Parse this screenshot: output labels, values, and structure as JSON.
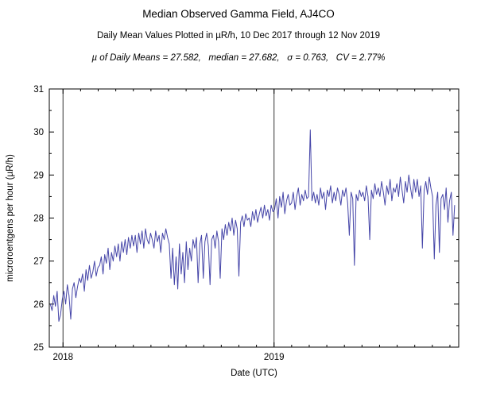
{
  "header": {
    "title": "Median Observed Gamma Field, AJ4CO",
    "subtitle": "Daily Mean Values Plotted in µR/h, 10 Dec 2017 through 12 Nov 2019",
    "stats": "µ of Daily Means = 27.582,   median = 27.682,   σ = 0.763,   CV = 2.77%"
  },
  "axes": {
    "xlabel": "Date (UTC)",
    "ylabel": "microroentgens per hour (µR/h)",
    "yticks": [
      25,
      26,
      27,
      28,
      29,
      30,
      31
    ],
    "xticks": [
      {
        "label": "2018",
        "value": 2018
      },
      {
        "label": "2019",
        "value": 2019
      }
    ]
  },
  "chart_data": {
    "type": "line",
    "title": "Median Observed Gamma Field, AJ4CO",
    "xlabel": "Date (UTC)",
    "ylabel": "microroentgens per hour (µR/h)",
    "xlim": [
      2017.935,
      2019.875
    ],
    "ylim": [
      25,
      31
    ],
    "x_start": 2017.94,
    "x_step": 0.00805,
    "x_minor_step": 0.0833333,
    "y_minor_step": 0.5,
    "line_color": "#4545a8",
    "grid_color": "#333333",
    "year_gridlines": [
      2018,
      2019
    ],
    "legend": "none",
    "values": [
      26.0,
      25.85,
      26.2,
      25.95,
      26.3,
      25.6,
      25.75,
      26.1,
      26.3,
      26.0,
      26.45,
      26.2,
      25.65,
      26.35,
      26.5,
      26.15,
      26.4,
      26.6,
      26.5,
      26.7,
      26.3,
      26.8,
      26.55,
      26.9,
      26.6,
      26.75,
      27.0,
      26.65,
      26.85,
      26.9,
      27.1,
      26.7,
      27.15,
      26.95,
      27.3,
      26.8,
      27.2,
      27.0,
      27.35,
      27.1,
      27.4,
      27.0,
      27.45,
      27.2,
      27.5,
      27.15,
      27.55,
      27.3,
      27.6,
      27.35,
      27.6,
      27.2,
      27.65,
      27.4,
      27.7,
      27.3,
      27.75,
      27.5,
      27.4,
      27.65,
      27.5,
      27.3,
      27.7,
      27.45,
      27.6,
      27.2,
      27.65,
      27.5,
      27.75,
      27.55,
      27.4,
      26.6,
      27.3,
      26.45,
      27.1,
      26.35,
      27.4,
      26.7,
      27.2,
      26.5,
      27.45,
      26.8,
      27.3,
      27.0,
      27.5,
      27.3,
      27.55,
      26.5,
      27.4,
      27.6,
      26.6,
      27.45,
      27.65,
      27.35,
      26.45,
      27.5,
      27.6,
      27.3,
      27.7,
      27.45,
      26.6,
      27.75,
      27.5,
      27.85,
      27.6,
      27.9,
      27.7,
      28.0,
      27.6,
      27.95,
      27.75,
      26.65,
      27.9,
      28.05,
      27.8,
      28.1,
      27.95,
      28.0,
      27.8,
      28.15,
      27.95,
      28.2,
      27.9,
      28.1,
      28.25,
      28.0,
      28.3,
      28.05,
      28.2,
      27.95,
      28.3,
      28.15,
      28.2,
      28.45,
      28.0,
      28.5,
      28.25,
      28.6,
      28.1,
      28.4,
      28.55,
      28.3,
      28.35,
      28.6,
      28.2,
      28.5,
      28.7,
      28.3,
      28.55,
      28.4,
      28.65,
      28.45,
      28.5,
      30.05,
      28.4,
      28.6,
      28.35,
      28.55,
      28.3,
      28.7,
      28.45,
      28.6,
      28.2,
      28.65,
      28.5,
      28.75,
      28.35,
      28.6,
      28.4,
      28.7,
      28.55,
      28.3,
      28.65,
      28.5,
      28.7,
      28.35,
      27.6,
      28.6,
      28.45,
      26.9,
      28.55,
      28.4,
      28.65,
      28.5,
      28.6,
      28.4,
      28.75,
      28.5,
      27.5,
      28.65,
      28.45,
      28.8,
      28.55,
      28.7,
      28.5,
      28.85,
      28.6,
      28.3,
      28.75,
      28.55,
      28.9,
      28.4,
      28.7,
      28.6,
      28.8,
      28.5,
      28.95,
      28.65,
      28.35,
      28.85,
      28.6,
      29.0,
      28.7,
      28.45,
      28.9,
      28.6,
      28.9,
      28.5,
      28.75,
      27.3,
      28.65,
      28.85,
      28.55,
      28.95,
      28.7,
      28.5,
      27.05,
      28.3,
      28.6,
      27.2,
      28.45,
      28.55,
      28.2,
      28.7,
      27.9,
      28.4,
      28.6,
      27.6,
      28.3
    ]
  }
}
